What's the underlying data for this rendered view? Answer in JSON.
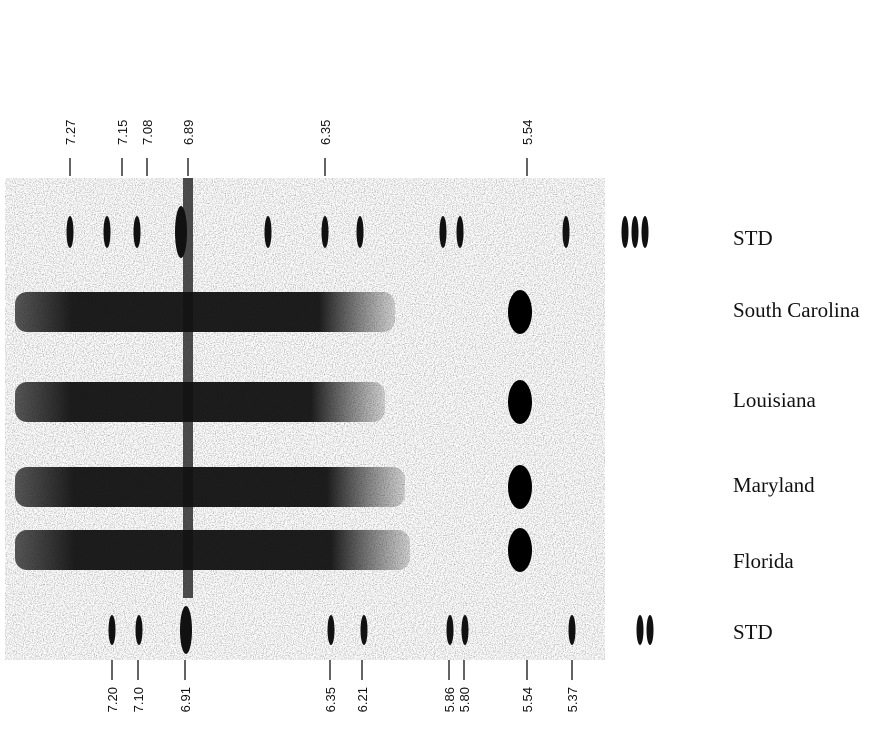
{
  "top_markers": [
    "7.27",
    "7.15",
    "7.08",
    "6.89",
    "6.35",
    "5.54"
  ],
  "bottom_markers": [
    "7.20",
    "7.10",
    "6.91",
    "6.35",
    "6.21",
    "5.86",
    "5.80",
    "5.54",
    "5.37"
  ],
  "lanes": [
    "STD",
    "South Carolina",
    "Louisiana",
    "Maryland",
    "Florida",
    "STD"
  ]
}
